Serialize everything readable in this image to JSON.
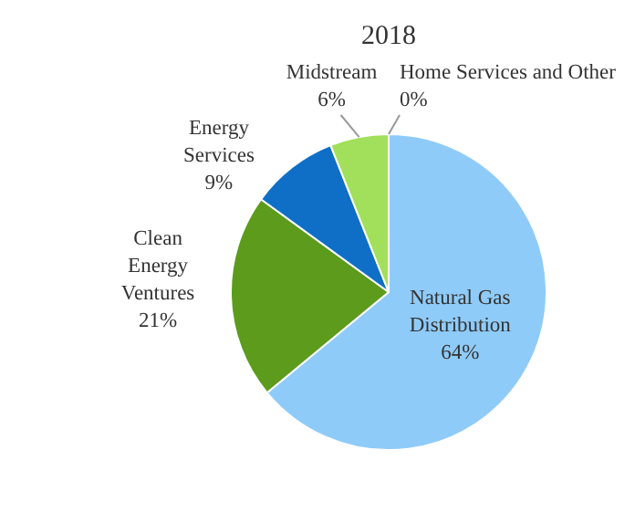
{
  "chart_data": {
    "type": "pie",
    "title": "2018",
    "categories": [
      "Natural Gas Distribution",
      "Clean Energy Ventures",
      "Energy Services",
      "Midstream",
      "Home Services and Other"
    ],
    "values": [
      64,
      21,
      9,
      6,
      0
    ],
    "value_labels": [
      "64%",
      "21%",
      "9%",
      "6%",
      "0%"
    ],
    "colors": [
      "#8fcbf8",
      "#5c9b1c",
      "#0f6fc6",
      "#a2df5a",
      "#7f7f7f"
    ],
    "legend": false
  }
}
